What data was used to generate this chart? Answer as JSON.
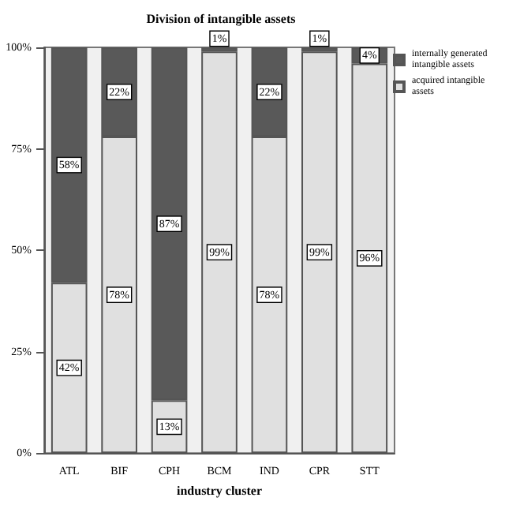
{
  "chart_data": {
    "type": "bar",
    "title": "Division of intangible assets",
    "xlabel": "industry cluster",
    "categories": [
      "ATL",
      "BIF",
      "CPH",
      "BCM",
      "IND",
      "CPR",
      "STT"
    ],
    "series": [
      {
        "name": "acquired intangible assets",
        "color": "#e0e0e0",
        "values": [
          42,
          78,
          13,
          99,
          78,
          99,
          96
        ],
        "value_labels": [
          "42%",
          "78%",
          "13%",
          "99%",
          "78%",
          "99%",
          "96%"
        ]
      },
      {
        "name": "internally generated intangible assets",
        "color": "#595959",
        "values": [
          58,
          22,
          87,
          1,
          22,
          1,
          4
        ],
        "value_labels": [
          "58%",
          "22%",
          "87%",
          "1%",
          "22%",
          "1%",
          "4%"
        ]
      }
    ],
    "stacked": true,
    "ylim": [
      0,
      100
    ],
    "yticks": [
      {
        "value": 0,
        "label": "0%"
      },
      {
        "value": 25,
        "label": "25%"
      },
      {
        "value": 50,
        "label": "50%"
      },
      {
        "value": 75,
        "label": "75%"
      },
      {
        "value": 100,
        "label": "100%"
      }
    ],
    "grid": false,
    "legend": "top right"
  }
}
